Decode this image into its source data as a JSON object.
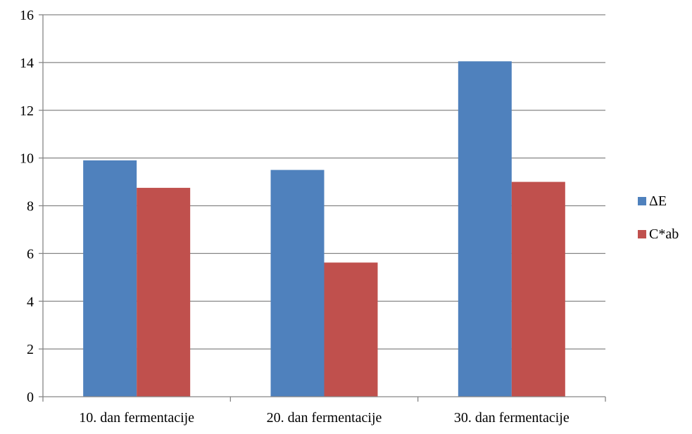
{
  "chart_data": {
    "type": "bar",
    "categories": [
      "10. dan fermentacije",
      "20. dan fermentacije",
      "30. dan fermentacije"
    ],
    "series": [
      {
        "name": "ΔE",
        "values": [
          9.9,
          9.5,
          14.05
        ],
        "color": "#4F81BD"
      },
      {
        "name": "C*ab",
        "values": [
          8.75,
          5.62,
          9.0
        ],
        "color": "#C0504D"
      }
    ],
    "ylim": [
      0,
      16
    ],
    "yticks": [
      "0",
      "2",
      "4",
      "6",
      "8",
      "10",
      "12",
      "14",
      "16"
    ],
    "grid": true,
    "legend_position": "right",
    "title": "",
    "xlabel": "",
    "ylabel": ""
  }
}
